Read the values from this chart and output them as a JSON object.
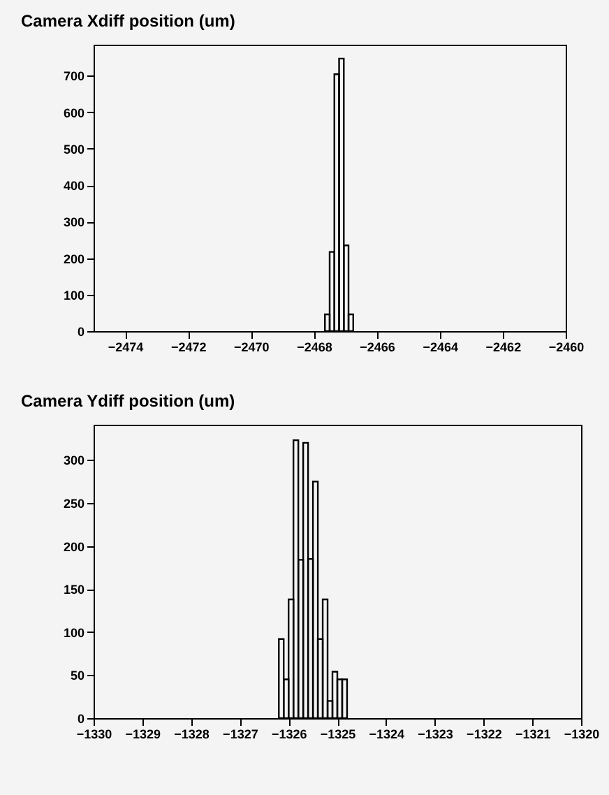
{
  "chart_data": [
    {
      "type": "histogram",
      "title": "Camera Xdiff position (um)",
      "color": "#000000",
      "bins": [
        -2467.65,
        -2467.5,
        -2467.35,
        -2467.2,
        -2467.05,
        -2466.9,
        -2466.75
      ],
      "values": [
        46,
        217,
        704,
        747,
        235,
        46
      ],
      "xlim": [
        -2475,
        -2460
      ],
      "xticks": [
        -2474,
        -2472,
        -2470,
        -2468,
        -2466,
        -2464,
        -2462,
        -2460
      ],
      "ylim": [
        0,
        785
      ],
      "yticks": [
        0,
        100,
        200,
        300,
        400,
        500,
        600,
        700
      ]
    },
    {
      "type": "histogram",
      "title": "Camera Ydiff position (um)",
      "color": "#000000",
      "bins": [
        -1326.2,
        -1326.1,
        -1326.0,
        -1325.9,
        -1325.8,
        -1325.7,
        -1325.6,
        -1325.5,
        -1325.4,
        -1325.3,
        -1325.2,
        -1325.1,
        -1325.0,
        -1324.9,
        -1324.8
      ],
      "values": [
        92,
        45,
        138,
        323,
        184,
        320,
        185,
        275,
        92,
        138,
        20,
        54,
        45,
        45
      ],
      "xlim": [
        -1330,
        -1320
      ],
      "xticks": [
        -1330,
        -1329,
        -1328,
        -1327,
        -1326,
        -1325,
        -1324,
        -1323,
        -1322,
        -1321,
        -1320
      ],
      "ylim": [
        0,
        341
      ],
      "yticks": [
        0,
        50,
        100,
        150,
        200,
        250,
        300
      ]
    }
  ]
}
